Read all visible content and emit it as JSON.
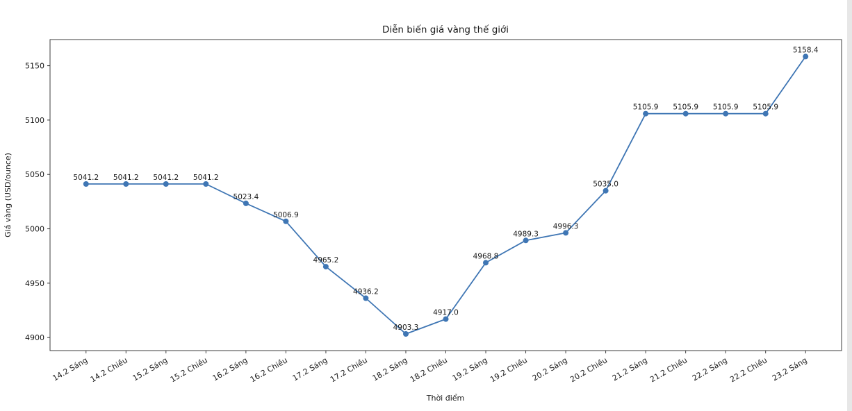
{
  "window": {
    "background": "#ffffff",
    "right_strip_color": "#e7e7e7"
  },
  "chart_data": {
    "type": "line",
    "title": "Diễn biến giá vàng thế giới",
    "xlabel": "Thời điểm",
    "ylabel": "Giá vàng (USD/ounce)",
    "categories": [
      "14.2 Sáng",
      "14.2 Chiều",
      "15.2 Sáng",
      "15.2 Chiều",
      "16.2 Sáng",
      "16.2 Chiều",
      "17.2 Sáng",
      "17.2 Chiều",
      "18.2 Sáng",
      "18.2 Chiều",
      "19.2 Sáng",
      "19.2 Chiều",
      "20.2 Sáng",
      "20.2 Chiều",
      "21.2 Sáng",
      "21.2 Chiều",
      "22.2 Sáng",
      "22.2 Chiều",
      "23.2 Sáng"
    ],
    "values": [
      5041.2,
      5041.2,
      5041.2,
      5041.2,
      5023.4,
      5006.9,
      4965.2,
      4936.2,
      4903.3,
      4917.0,
      4968.8,
      4989.3,
      4996.3,
      5035.0,
      5105.9,
      5105.9,
      5105.9,
      5105.9,
      5158.4
    ],
    "annotations": [
      "5041.2",
      "5041.2",
      "5041.2",
      "5041.2",
      "5023.4",
      "5006.9",
      "4965.2",
      "4936.2",
      "4903.3",
      "4917.0",
      "4968.8",
      "4989.3",
      "4996.3",
      "5035.0",
      "5105.9",
      "5105.9",
      "5105.9",
      "5105.9",
      "5158.4"
    ],
    "yticks": [
      4900,
      4950,
      5000,
      5050,
      5100,
      5150
    ],
    "ylim": [
      4888,
      5174
    ],
    "x_tick_rotation": -30,
    "grid": false,
    "legend": "none",
    "line_color": "#3f76b4",
    "marker": "circle",
    "spine_color": "#3c3c3c"
  }
}
